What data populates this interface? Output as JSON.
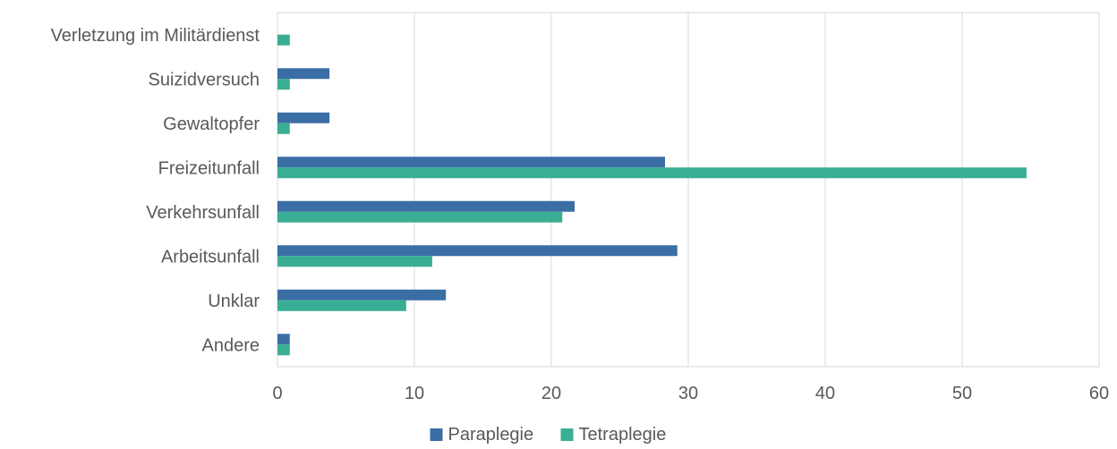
{
  "chart_data": {
    "type": "bar",
    "orientation": "horizontal",
    "categories": [
      "Verletzung im Militärdienst",
      "Suizidversuch",
      "Gewaltopfer",
      "Freizeitunfall",
      "Verkehrsunfall",
      "Arbeitsunfall",
      "Unklar",
      "Andere"
    ],
    "series": [
      {
        "name": "Paraplegie",
        "color": "#3a6ea5",
        "values": [
          0,
          3.8,
          3.8,
          28.3,
          21.7,
          29.2,
          12.3,
          0.9
        ]
      },
      {
        "name": "Tetraplegie",
        "color": "#3aae94",
        "values": [
          0.9,
          0.9,
          0.9,
          54.7,
          20.8,
          11.3,
          9.4,
          0.9
        ]
      }
    ],
    "xlim": [
      0,
      60
    ],
    "xticks": [
      "0",
      "10",
      "20",
      "30",
      "40",
      "50",
      "60"
    ],
    "grid": true,
    "legend_position": "bottom"
  }
}
